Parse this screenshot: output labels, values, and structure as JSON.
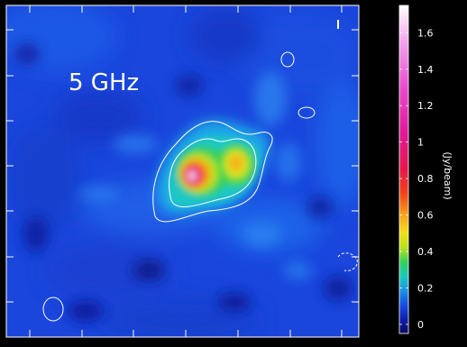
{
  "image": {
    "label": "5 GHz",
    "colorbar": {
      "unit_label": "(Jy/beam)",
      "range": [
        -0.05,
        1.75
      ],
      "ticks": [
        "0",
        "0.2",
        "0.4",
        "0.6",
        "0.8",
        "1",
        "1.2",
        "1.4",
        "1.6"
      ],
      "tick_values": [
        0,
        0.2,
        0.4,
        0.6,
        0.8,
        1.0,
        1.2,
        1.4,
        1.6
      ],
      "stops": [
        {
          "v": -0.05,
          "c": "#0a0a5e"
        },
        {
          "v": 0.02,
          "c": "#0b1aa8"
        },
        {
          "v": 0.1,
          "c": "#1748e0"
        },
        {
          "v": 0.18,
          "c": "#1a8de6"
        },
        {
          "v": 0.26,
          "c": "#19c7c0"
        },
        {
          "v": 0.34,
          "c": "#2fd05a"
        },
        {
          "v": 0.42,
          "c": "#b8e21a"
        },
        {
          "v": 0.5,
          "c": "#f3e01a"
        },
        {
          "v": 0.6,
          "c": "#f9a21a"
        },
        {
          "v": 0.72,
          "c": "#f2421a"
        },
        {
          "v": 0.85,
          "c": "#e8174a"
        },
        {
          "v": 1.05,
          "c": "#e0199a"
        },
        {
          "v": 1.3,
          "c": "#e84ccc"
        },
        {
          "v": 1.55,
          "c": "#f3a4ec"
        },
        {
          "v": 1.75,
          "c": "#ffffff"
        }
      ]
    }
  }
}
